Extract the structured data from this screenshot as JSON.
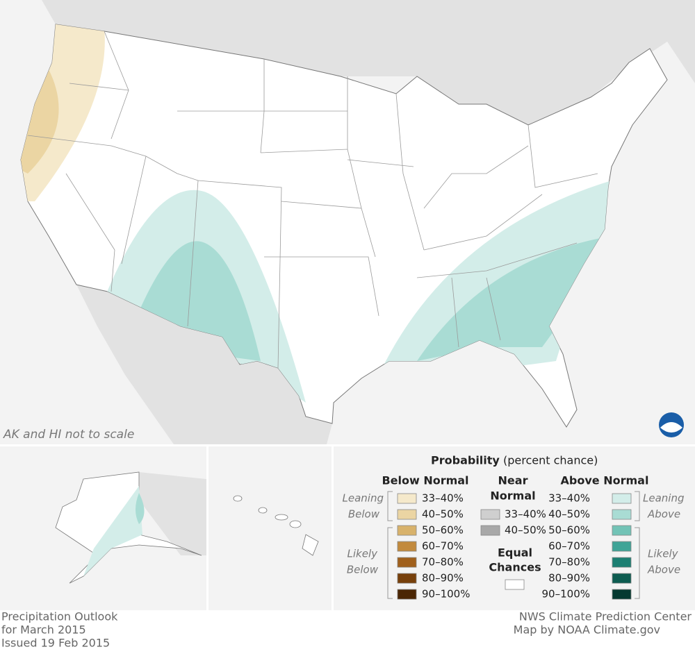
{
  "map": {
    "note": "AK and HI not to scale"
  },
  "legend": {
    "title": "Probability",
    "title_suffix": "(percent chance)",
    "below": {
      "heading": "Below Normal",
      "leaning": [
        "Leaning",
        "Below"
      ],
      "likely": [
        "Likely",
        "Below"
      ],
      "items": [
        {
          "label": "33–40%",
          "color": "#f5e9cb"
        },
        {
          "label": "40–50%",
          "color": "#ebd5a3"
        },
        {
          "label": "50–60%",
          "color": "#d8b26b"
        },
        {
          "label": "60–70%",
          "color": "#c28a3d"
        },
        {
          "label": "70–80%",
          "color": "#a0601c"
        },
        {
          "label": "80–90%",
          "color": "#77400b"
        },
        {
          "label": "90–100%",
          "color": "#4b2604"
        }
      ]
    },
    "near": {
      "heading": [
        "Near",
        "Normal"
      ],
      "items": [
        {
          "label": "33–40%",
          "color": "#cfcfcf"
        },
        {
          "label": "40–50%",
          "color": "#a8a8a8"
        }
      ]
    },
    "equal": {
      "heading": [
        "Equal",
        "Chances"
      ],
      "color": "#ffffff"
    },
    "above": {
      "heading": "Above Normal",
      "leaning": [
        "Leaning",
        "Above"
      ],
      "likely": [
        "Likely",
        "Above"
      ],
      "items": [
        {
          "label": "33–40%",
          "color": "#d3ede9"
        },
        {
          "label": "40–50%",
          "color": "#a9dcd4"
        },
        {
          "label": "50–60%",
          "color": "#72c3b6"
        },
        {
          "label": "60–70%",
          "color": "#3fa497"
        },
        {
          "label": "70–80%",
          "color": "#1c7f72"
        },
        {
          "label": "80–90%",
          "color": "#0d5c50"
        },
        {
          "label": "90–100%",
          "color": "#053a31"
        }
      ]
    }
  },
  "footer": {
    "left": [
      "Precipitation Outlook",
      "for March 2015",
      "Issued 19 Feb 2015"
    ],
    "right": [
      "NWS Climate Prediction Center",
      "Map by NOAA Climate.gov"
    ]
  }
}
